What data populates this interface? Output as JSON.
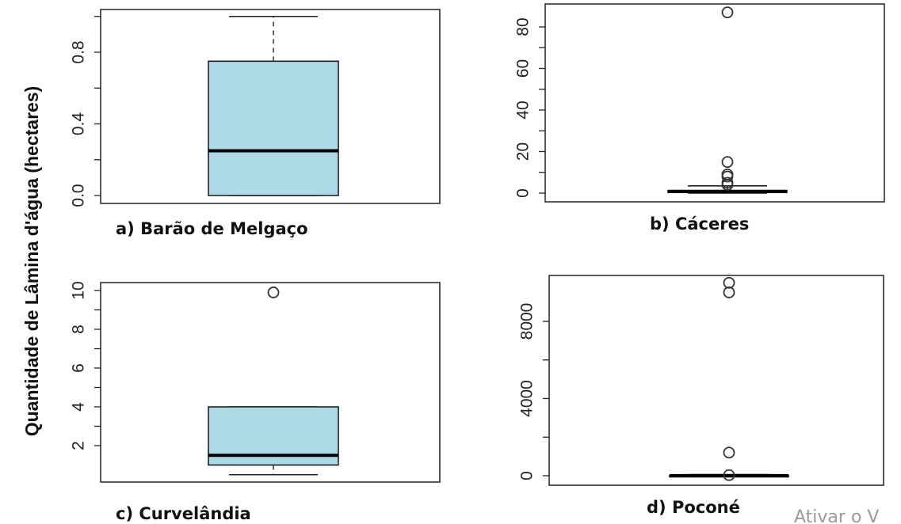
{
  "ylabel": "Quantidade de Lâmina d'água (hectares)",
  "watermark": "Ativar o V",
  "chart_data": [
    {
      "type": "boxplot",
      "caption": "a) Barão de Melgaço",
      "yticks": [
        "0.0",
        "0.4",
        "0.8"
      ],
      "ylim": [
        0,
        1.0
      ],
      "box": {
        "whisker_low": 0.0,
        "q1": 0.0,
        "median": 0.25,
        "q3": 0.75,
        "whisker_high": 1.0
      },
      "outliers": [],
      "fill": "#add8e6"
    },
    {
      "type": "boxplot",
      "caption": "b) Cáceres",
      "yticks": [
        "0",
        "20",
        "40",
        "60",
        "80"
      ],
      "ylim": [
        0,
        90
      ],
      "box": {
        "whisker_low": 0.0,
        "q1": 0.3,
        "median": 0.8,
        "q3": 1.3,
        "whisker_high": 3.5
      },
      "outliers": [
        4,
        5,
        8,
        9,
        15,
        87
      ],
      "fill": "#add8e6"
    },
    {
      "type": "boxplot",
      "caption": "c) Curvelândia",
      "yticks": [
        "2",
        "4",
        "6",
        "8",
        "10"
      ],
      "ylim": [
        0.5,
        10
      ],
      "box": {
        "whisker_low": 0.5,
        "q1": 1.0,
        "median": 1.5,
        "q3": 4.0,
        "whisker_high": 4.0
      },
      "outliers": [
        9.9
      ],
      "fill": "#add8e6"
    },
    {
      "type": "boxplot",
      "caption": "d) Poconé",
      "yticks": [
        "0",
        "4000",
        "8000"
      ],
      "ylim": [
        0,
        10000
      ],
      "box": {
        "whisker_low": 0,
        "q1": 0,
        "median": 5,
        "q3": 20,
        "whisker_high": 60
      },
      "outliers": [
        30,
        1200,
        9500,
        10000
      ],
      "fill": "#add8e6"
    }
  ]
}
